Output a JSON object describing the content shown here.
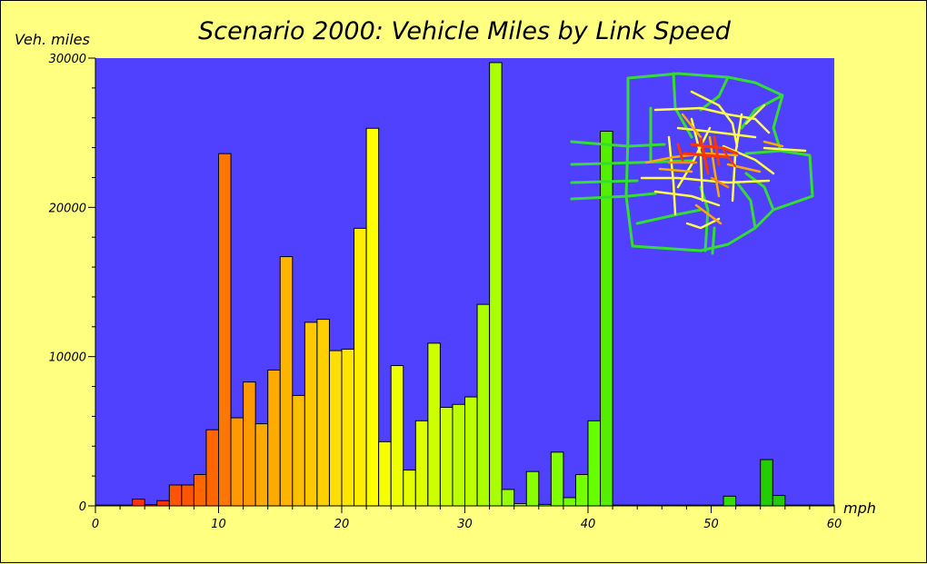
{
  "chart_data": {
    "type": "bar",
    "title": "Scenario 2000: Vehicle Miles by Link Speed",
    "ylabel": "Veh. miles",
    "xlabel": "mph",
    "xlim": [
      0,
      60
    ],
    "ylim": [
      0,
      30000
    ],
    "x_ticks": [
      0,
      10,
      20,
      30,
      40,
      50,
      60
    ],
    "y_ticks": [
      0,
      10000,
      20000,
      30000
    ],
    "bin_width": 1,
    "grid": false,
    "plot_background": "#5040ff",
    "page_background": "#ffff80",
    "bins": [
      {
        "x": 0,
        "value": 50,
        "color": "#ff3300"
      },
      {
        "x": 1,
        "value": 50,
        "color": "#ff3300"
      },
      {
        "x": 2,
        "value": 50,
        "color": "#ff3300"
      },
      {
        "x": 3,
        "value": 450,
        "color": "#ff3300"
      },
      {
        "x": 4,
        "value": 80,
        "color": "#ff3300"
      },
      {
        "x": 5,
        "value": 350,
        "color": "#ff3300"
      },
      {
        "x": 6,
        "value": 1400,
        "color": "#ff5500"
      },
      {
        "x": 7,
        "value": 1400,
        "color": "#ff5500"
      },
      {
        "x": 8,
        "value": 2100,
        "color": "#ff6600"
      },
      {
        "x": 9,
        "value": 5100,
        "color": "#ff6600"
      },
      {
        "x": 10,
        "value": 23600,
        "color": "#ff7700"
      },
      {
        "x": 11,
        "value": 5900,
        "color": "#ff9900"
      },
      {
        "x": 12,
        "value": 8300,
        "color": "#ff9900"
      },
      {
        "x": 13,
        "value": 5500,
        "color": "#ffaa00"
      },
      {
        "x": 14,
        "value": 9100,
        "color": "#ffaa00"
      },
      {
        "x": 15,
        "value": 16700,
        "color": "#ffb400"
      },
      {
        "x": 16,
        "value": 7400,
        "color": "#ffbf00"
      },
      {
        "x": 17,
        "value": 12300,
        "color": "#ffc800"
      },
      {
        "x": 18,
        "value": 12500,
        "color": "#ffd000"
      },
      {
        "x": 19,
        "value": 10400,
        "color": "#ffdd00"
      },
      {
        "x": 20,
        "value": 10500,
        "color": "#ffe600"
      },
      {
        "x": 21,
        "value": 18600,
        "color": "#ffee00"
      },
      {
        "x": 22,
        "value": 25300,
        "color": "#ffff00"
      },
      {
        "x": 23,
        "value": 4300,
        "color": "#f5ff00"
      },
      {
        "x": 24,
        "value": 9400,
        "color": "#eeff00"
      },
      {
        "x": 25,
        "value": 2400,
        "color": "#e6ff00"
      },
      {
        "x": 26,
        "value": 5700,
        "color": "#ddff00"
      },
      {
        "x": 27,
        "value": 10900,
        "color": "#ccff00"
      },
      {
        "x": 28,
        "value": 6600,
        "color": "#ccff00"
      },
      {
        "x": 29,
        "value": 6800,
        "color": "#bbff00"
      },
      {
        "x": 30,
        "value": 7300,
        "color": "#bbff00"
      },
      {
        "x": 31,
        "value": 13500,
        "color": "#aaff00"
      },
      {
        "x": 32,
        "value": 29700,
        "color": "#aaff00"
      },
      {
        "x": 33,
        "value": 1100,
        "color": "#99ff00"
      },
      {
        "x": 34,
        "value": 150,
        "color": "#99ff00"
      },
      {
        "x": 35,
        "value": 2300,
        "color": "#88ff00"
      },
      {
        "x": 36,
        "value": 100,
        "color": "#88ff00"
      },
      {
        "x": 37,
        "value": 3600,
        "color": "#80ff00"
      },
      {
        "x": 38,
        "value": 550,
        "color": "#77ff00"
      },
      {
        "x": 39,
        "value": 2100,
        "color": "#77ff00"
      },
      {
        "x": 40,
        "value": 5700,
        "color": "#66ff00"
      },
      {
        "x": 41,
        "value": 25100,
        "color": "#55ee00"
      },
      {
        "x": 42,
        "value": 50,
        "color": "#55ee00"
      },
      {
        "x": 43,
        "value": 50,
        "color": "#55ee00"
      },
      {
        "x": 44,
        "value": 50,
        "color": "#44ee00"
      },
      {
        "x": 45,
        "value": 50,
        "color": "#44ee00"
      },
      {
        "x": 46,
        "value": 50,
        "color": "#44dd00"
      },
      {
        "x": 47,
        "value": 50,
        "color": "#44dd00"
      },
      {
        "x": 48,
        "value": 50,
        "color": "#44dd00"
      },
      {
        "x": 49,
        "value": 50,
        "color": "#33dd00"
      },
      {
        "x": 50,
        "value": 50,
        "color": "#33dd00"
      },
      {
        "x": 51,
        "value": 650,
        "color": "#33dd00"
      },
      {
        "x": 52,
        "value": 50,
        "color": "#22cc00"
      },
      {
        "x": 53,
        "value": 50,
        "color": "#22cc00"
      },
      {
        "x": 54,
        "value": 3100,
        "color": "#22cc00"
      },
      {
        "x": 55,
        "value": 700,
        "color": "#22cc00"
      },
      {
        "x": 56,
        "value": 50,
        "color": "#22cc00"
      },
      {
        "x": 57,
        "value": 50,
        "color": "#22cc00"
      },
      {
        "x": 58,
        "value": 50,
        "color": "#22cc00"
      },
      {
        "x": 59,
        "value": 50,
        "color": "#22cc00"
      }
    ]
  },
  "inset": {
    "icon": "road-network-map-icon",
    "background": "#5040ff",
    "colors": [
      "#33dd33",
      "#ffff44",
      "#ffaa00",
      "#ff3300",
      "#ff8800"
    ]
  }
}
